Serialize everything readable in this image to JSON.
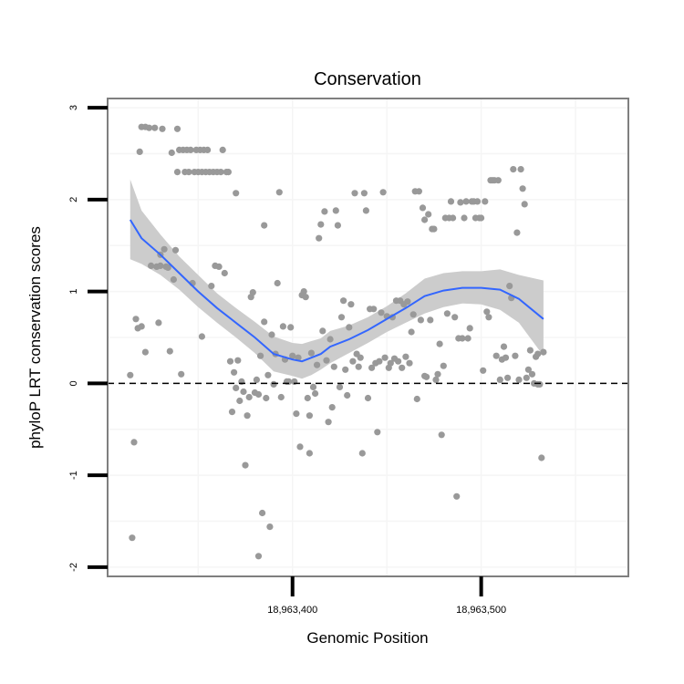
{
  "chart_data": {
    "type": "scatter",
    "title": "Conservation",
    "xlabel": "Genomic Position",
    "ylabel": "phyloP LRT conservation scores",
    "xlim": [
      18963302,
      18963578
    ],
    "ylim": [
      -2.1,
      3.1
    ],
    "xticks": [
      {
        "value": 18963400,
        "label": "18,963,400"
      },
      {
        "value": 18963500,
        "label": "18,963,500"
      }
    ],
    "yticks": [
      {
        "value": -2,
        "label": "-2"
      },
      {
        "value": -1,
        "label": "-1"
      },
      {
        "value": 0,
        "label": "0"
      },
      {
        "value": 1,
        "label": "1"
      },
      {
        "value": 2,
        "label": "2"
      },
      {
        "value": 3,
        "label": "3"
      }
    ],
    "reference_line": {
      "y": 0,
      "style": "dashed",
      "color": "#000000"
    },
    "grid": true,
    "legend": "none",
    "colors": {
      "points": "#999999",
      "smooth_line": "#3366ff",
      "confidence_band": "#cccccc",
      "panel_border": "#7f7f7f",
      "gridlines": "#f5f5f5"
    },
    "series": [
      {
        "type": "points",
        "points": [
          [
            18963314,
            0.09
          ],
          [
            18963315,
            -1.68
          ],
          [
            18963316,
            -0.64
          ],
          [
            18963317,
            0.7
          ],
          [
            18963318,
            0.6
          ],
          [
            18963319,
            2.52
          ],
          [
            18963320,
            2.79
          ],
          [
            18963320,
            0.62
          ],
          [
            18963322,
            0.34
          ],
          [
            18963322,
            2.79
          ],
          [
            18963324,
            2.78
          ],
          [
            18963325,
            1.28
          ],
          [
            18963327,
            2.78
          ],
          [
            18963328,
            1.27
          ],
          [
            18963329,
            0.66
          ],
          [
            18963330,
            1.28
          ],
          [
            18963330,
            1.4
          ],
          [
            18963331,
            2.77
          ],
          [
            18963332,
            1.46
          ],
          [
            18963333,
            1.27
          ],
          [
            18963334,
            1.26
          ],
          [
            18963335,
            0.35
          ],
          [
            18963336,
            2.51
          ],
          [
            18963337,
            1.13
          ],
          [
            18963338,
            1.45
          ],
          [
            18963339,
            2.77
          ],
          [
            18963339,
            2.3
          ],
          [
            18963340,
            2.54
          ],
          [
            18963341,
            0.1
          ],
          [
            18963342,
            2.54
          ],
          [
            18963343,
            2.3
          ],
          [
            18963344,
            2.54
          ],
          [
            18963345,
            2.3
          ],
          [
            18963346,
            2.54
          ],
          [
            18963347,
            1.09
          ],
          [
            18963348,
            2.3
          ],
          [
            18963349,
            2.54
          ],
          [
            18963350,
            2.3
          ],
          [
            18963351,
            2.54
          ],
          [
            18963352,
            2.3
          ],
          [
            18963352,
            0.51
          ],
          [
            18963353,
            2.54
          ],
          [
            18963354,
            2.3
          ],
          [
            18963355,
            2.54
          ],
          [
            18963356,
            2.3
          ],
          [
            18963357,
            1.06
          ],
          [
            18963358,
            2.3
          ],
          [
            18963359,
            1.28
          ],
          [
            18963360,
            2.3
          ],
          [
            18963361,
            1.27
          ],
          [
            18963362,
            2.3
          ],
          [
            18963363,
            2.54
          ],
          [
            18963364,
            1.2
          ],
          [
            18963365,
            2.3
          ],
          [
            18963366,
            2.3
          ],
          [
            18963367,
            0.24
          ],
          [
            18963368,
            -0.31
          ],
          [
            18963369,
            0.12
          ],
          [
            18963370,
            2.07
          ],
          [
            18963370,
            -0.05
          ],
          [
            18963371,
            0.25
          ],
          [
            18963372,
            -0.19
          ],
          [
            18963373,
            0.02
          ],
          [
            18963374,
            -0.09
          ],
          [
            18963375,
            -0.89
          ],
          [
            18963376,
            -0.35
          ],
          [
            18963377,
            -0.15
          ],
          [
            18963378,
            0.94
          ],
          [
            18963379,
            0.99
          ],
          [
            18963380,
            -0.1
          ],
          [
            18963381,
            0.04
          ],
          [
            18963382,
            -1.88
          ],
          [
            18963382,
            -0.12
          ],
          [
            18963383,
            0.3
          ],
          [
            18963384,
            -1.41
          ],
          [
            18963385,
            1.72
          ],
          [
            18963385,
            0.67
          ],
          [
            18963386,
            -0.16
          ],
          [
            18963387,
            0.09
          ],
          [
            18963388,
            -1.56
          ],
          [
            18963389,
            0.53
          ],
          [
            18963390,
            -0.01
          ],
          [
            18963391,
            0.32
          ],
          [
            18963392,
            1.09
          ],
          [
            18963393,
            2.08
          ],
          [
            18963394,
            -0.15
          ],
          [
            18963395,
            0.62
          ],
          [
            18963396,
            0.26
          ],
          [
            18963397,
            0.02
          ],
          [
            18963398,
            0.02
          ],
          [
            18963399,
            0.61
          ],
          [
            18963400,
            0.3
          ],
          [
            18963401,
            0.02
          ],
          [
            18963402,
            -0.33
          ],
          [
            18963403,
            0.28
          ],
          [
            18963404,
            -0.69
          ],
          [
            18963405,
            0.96
          ],
          [
            18963406,
            1.0
          ],
          [
            18963407,
            0.94
          ],
          [
            18963408,
            -0.16
          ],
          [
            18963409,
            -0.76
          ],
          [
            18963409,
            -0.35
          ],
          [
            18963410,
            0.33
          ],
          [
            18963411,
            -0.04
          ],
          [
            18963412,
            -0.11
          ],
          [
            18963413,
            0.2
          ],
          [
            18963414,
            1.58
          ],
          [
            18963415,
            1.73
          ],
          [
            18963416,
            0.57
          ],
          [
            18963417,
            1.87
          ],
          [
            18963418,
            0.25
          ],
          [
            18963419,
            -0.42
          ],
          [
            18963420,
            0.48
          ],
          [
            18963421,
            -0.26
          ],
          [
            18963422,
            0.18
          ],
          [
            18963423,
            1.88
          ],
          [
            18963424,
            1.72
          ],
          [
            18963425,
            -0.04
          ],
          [
            18963426,
            0.72
          ],
          [
            18963427,
            0.9
          ],
          [
            18963428,
            0.15
          ],
          [
            18963429,
            -0.13
          ],
          [
            18963430,
            0.61
          ],
          [
            18963431,
            0.86
          ],
          [
            18963432,
            0.24
          ],
          [
            18963433,
            2.07
          ],
          [
            18963434,
            0.32
          ],
          [
            18963435,
            0.18
          ],
          [
            18963436,
            0.28
          ],
          [
            18963437,
            -0.76
          ],
          [
            18963438,
            2.07
          ],
          [
            18963439,
            1.88
          ],
          [
            18963440,
            -0.16
          ],
          [
            18963441,
            0.81
          ],
          [
            18963442,
            0.17
          ],
          [
            18963443,
            0.81
          ],
          [
            18963444,
            0.22
          ],
          [
            18963445,
            -0.53
          ],
          [
            18963446,
            0.24
          ],
          [
            18963447,
            0.77
          ],
          [
            18963448,
            2.08
          ],
          [
            18963449,
            0.28
          ],
          [
            18963450,
            0.73
          ],
          [
            18963451,
            0.17
          ],
          [
            18963452,
            0.22
          ],
          [
            18963453,
            0.72
          ],
          [
            18963454,
            0.27
          ],
          [
            18963455,
            0.9
          ],
          [
            18963456,
            0.24
          ],
          [
            18963457,
            0.9
          ],
          [
            18963458,
            0.17
          ],
          [
            18963459,
            0.86
          ],
          [
            18963460,
            0.29
          ],
          [
            18963461,
            0.89
          ],
          [
            18963462,
            0.22
          ],
          [
            18963463,
            0.56
          ],
          [
            18963464,
            0.75
          ],
          [
            18963465,
            2.09
          ],
          [
            18963466,
            -0.17
          ],
          [
            18963467,
            2.09
          ],
          [
            18963468,
            0.69
          ],
          [
            18963469,
            1.91
          ],
          [
            18963470,
            1.78
          ],
          [
            18963470,
            0.08
          ],
          [
            18963471,
            0.07
          ],
          [
            18963472,
            1.84
          ],
          [
            18963473,
            0.69
          ],
          [
            18963474,
            1.68
          ],
          [
            18963475,
            1.68
          ],
          [
            18963476,
            0.04
          ],
          [
            18963477,
            0.1
          ],
          [
            18963478,
            0.43
          ],
          [
            18963479,
            -0.56
          ],
          [
            18963480,
            0.19
          ],
          [
            18963481,
            1.8
          ],
          [
            18963482,
            0.76
          ],
          [
            18963483,
            1.8
          ],
          [
            18963484,
            1.98
          ],
          [
            18963485,
            1.8
          ],
          [
            18963486,
            0.72
          ],
          [
            18963487,
            -1.23
          ],
          [
            18963488,
            0.49
          ],
          [
            18963489,
            1.97
          ],
          [
            18963490,
            0.49
          ],
          [
            18963491,
            1.8
          ],
          [
            18963492,
            1.98
          ],
          [
            18963493,
            0.49
          ],
          [
            18963494,
            0.6
          ],
          [
            18963495,
            1.98
          ],
          [
            18963496,
            1.98
          ],
          [
            18963497,
            1.8
          ],
          [
            18963498,
            1.98
          ],
          [
            18963499,
            1.8
          ],
          [
            18963500,
            1.8
          ],
          [
            18963501,
            0.14
          ],
          [
            18963502,
            1.98
          ],
          [
            18963503,
            0.78
          ],
          [
            18963504,
            0.72
          ],
          [
            18963505,
            2.21
          ],
          [
            18963506,
            2.21
          ],
          [
            18963507,
            2.21
          ],
          [
            18963508,
            0.3
          ],
          [
            18963509,
            2.21
          ],
          [
            18963510,
            0.04
          ],
          [
            18963511,
            0.26
          ],
          [
            18963512,
            0.4
          ],
          [
            18963513,
            0.28
          ],
          [
            18963514,
            0.06
          ],
          [
            18963515,
            1.06
          ],
          [
            18963516,
            0.93
          ],
          [
            18963517,
            2.33
          ],
          [
            18963518,
            0.3
          ],
          [
            18963519,
            1.64
          ],
          [
            18963520,
            0.04
          ],
          [
            18963521,
            2.33
          ],
          [
            18963522,
            2.12
          ],
          [
            18963523,
            1.95
          ],
          [
            18963524,
            0.06
          ],
          [
            18963525,
            0.15
          ],
          [
            18963526,
            0.36
          ],
          [
            18963527,
            0.1
          ],
          [
            18963528,
            0.0
          ],
          [
            18963529,
            0.29
          ],
          [
            18963530,
            0.32
          ],
          [
            18963530,
            -0.01
          ],
          [
            18963531,
            -0.01
          ],
          [
            18963532,
            -0.81
          ],
          [
            18963533,
            0.34
          ]
        ]
      },
      {
        "type": "smooth",
        "x": [
          18963314,
          18963320,
          18963330,
          18963340,
          18963350,
          18963360,
          18963370,
          18963380,
          18963390,
          18963400,
          18963405,
          18963410,
          18963415,
          18963420,
          18963430,
          18963440,
          18963450,
          18963460,
          18963470,
          18963480,
          18963490,
          18963500,
          18963510,
          18963520,
          18963533
        ],
        "y": [
          1.78,
          1.58,
          1.4,
          1.2,
          1.0,
          0.82,
          0.66,
          0.5,
          0.32,
          0.26,
          0.24,
          0.28,
          0.32,
          0.4,
          0.48,
          0.58,
          0.7,
          0.82,
          0.95,
          1.01,
          1.04,
          1.04,
          1.02,
          0.92,
          0.7
        ],
        "lower": [
          1.35,
          1.3,
          1.18,
          1.02,
          0.83,
          0.66,
          0.5,
          0.33,
          0.13,
          0.08,
          0.05,
          0.09,
          0.15,
          0.22,
          0.33,
          0.44,
          0.56,
          0.66,
          0.76,
          0.83,
          0.87,
          0.86,
          0.8,
          0.66,
          0.3
        ],
        "upper": [
          2.22,
          1.88,
          1.62,
          1.38,
          1.18,
          0.98,
          0.82,
          0.67,
          0.51,
          0.44,
          0.43,
          0.46,
          0.49,
          0.57,
          0.63,
          0.72,
          0.84,
          0.98,
          1.14,
          1.2,
          1.22,
          1.22,
          1.24,
          1.18,
          1.12
        ]
      }
    ]
  }
}
